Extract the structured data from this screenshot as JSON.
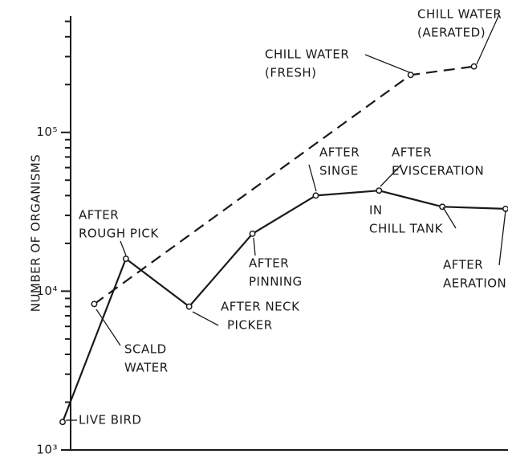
{
  "chart_data": {
    "type": "line",
    "y_label": "NUMBER OF ORGANISMS",
    "log_y": true,
    "ylim": [
      1000,
      540000
    ],
    "yticks": [
      {
        "value": 1000,
        "label": "10³"
      },
      {
        "value": 10000,
        "label": "10⁴"
      },
      {
        "value": 100000,
        "label": "10⁵"
      }
    ],
    "yminorticks": [
      2000,
      3000,
      4000,
      5000,
      6000,
      7000,
      8000,
      9000,
      20000,
      30000,
      40000,
      50000,
      60000,
      70000,
      80000,
      90000,
      200000,
      300000,
      400000,
      500000
    ],
    "xlim": [
      0,
      14
    ],
    "series": [
      {
        "style": "solid",
        "color": "#1a1a1a",
        "x": [
          0,
          2,
          4,
          6,
          8,
          10,
          12,
          14
        ],
        "values": [
          1500,
          16000,
          8000,
          23000,
          40000,
          43000,
          34000,
          33000
        ]
      },
      {
        "style": "dashed",
        "color": "#1a1a1a",
        "x": [
          1,
          11,
          13
        ],
        "values": [
          8300,
          230000,
          260000
        ]
      }
    ],
    "annotations": [
      [
        "LIVE BIRD"
      ],
      [
        "SCALD",
        "WATER"
      ],
      [
        "AFTER",
        "ROUGH PICK"
      ],
      [
        "AFTER NECK",
        "PICKER"
      ],
      [
        "AFTER",
        "PINNING"
      ],
      [
        "AFTER",
        "SINGE"
      ],
      [
        "AFTER",
        "EVISCERATION"
      ],
      [
        "IN",
        "CHILL TANK"
      ],
      [
        "AFTER",
        "AERATION"
      ],
      [
        "CHILL WATER",
        "(FRESH)"
      ],
      [
        "CHILL WATER",
        "(AERATED)"
      ]
    ]
  }
}
